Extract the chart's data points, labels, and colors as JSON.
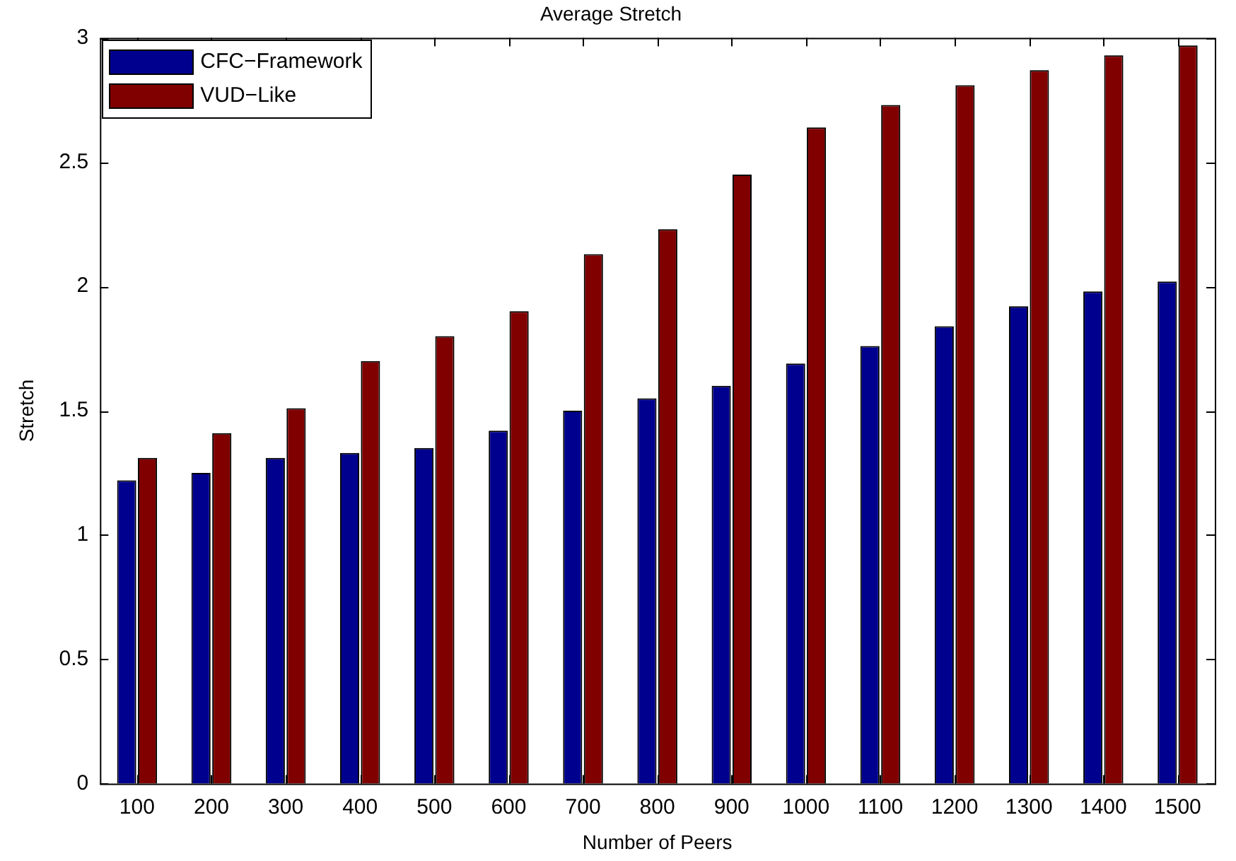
{
  "chart_data": {
    "type": "bar",
    "title": "Average Stretch",
    "xlabel": "Number of Peers",
    "ylabel": "Stretch",
    "categories": [
      "100",
      "200",
      "300",
      "400",
      "500",
      "600",
      "700",
      "800",
      "900",
      "1000",
      "1100",
      "1200",
      "1300",
      "1400",
      "1500"
    ],
    "series": [
      {
        "name": "CFC−Framework",
        "color": "#00008f",
        "values": [
          1.22,
          1.25,
          1.31,
          1.33,
          1.35,
          1.42,
          1.5,
          1.55,
          1.6,
          1.69,
          1.76,
          1.84,
          1.92,
          1.98,
          2.02
        ]
      },
      {
        "name": "VUD−Like",
        "color": "#800000",
        "values": [
          1.31,
          1.41,
          1.51,
          1.7,
          1.8,
          1.9,
          2.13,
          2.23,
          2.45,
          2.64,
          2.73,
          2.81,
          2.87,
          2.93,
          2.97
        ]
      }
    ],
    "ylim": [
      0,
      3
    ],
    "yticks": [
      0,
      0.5,
      1,
      1.5,
      2,
      2.5,
      3
    ],
    "legend": "top left",
    "grid": false
  }
}
